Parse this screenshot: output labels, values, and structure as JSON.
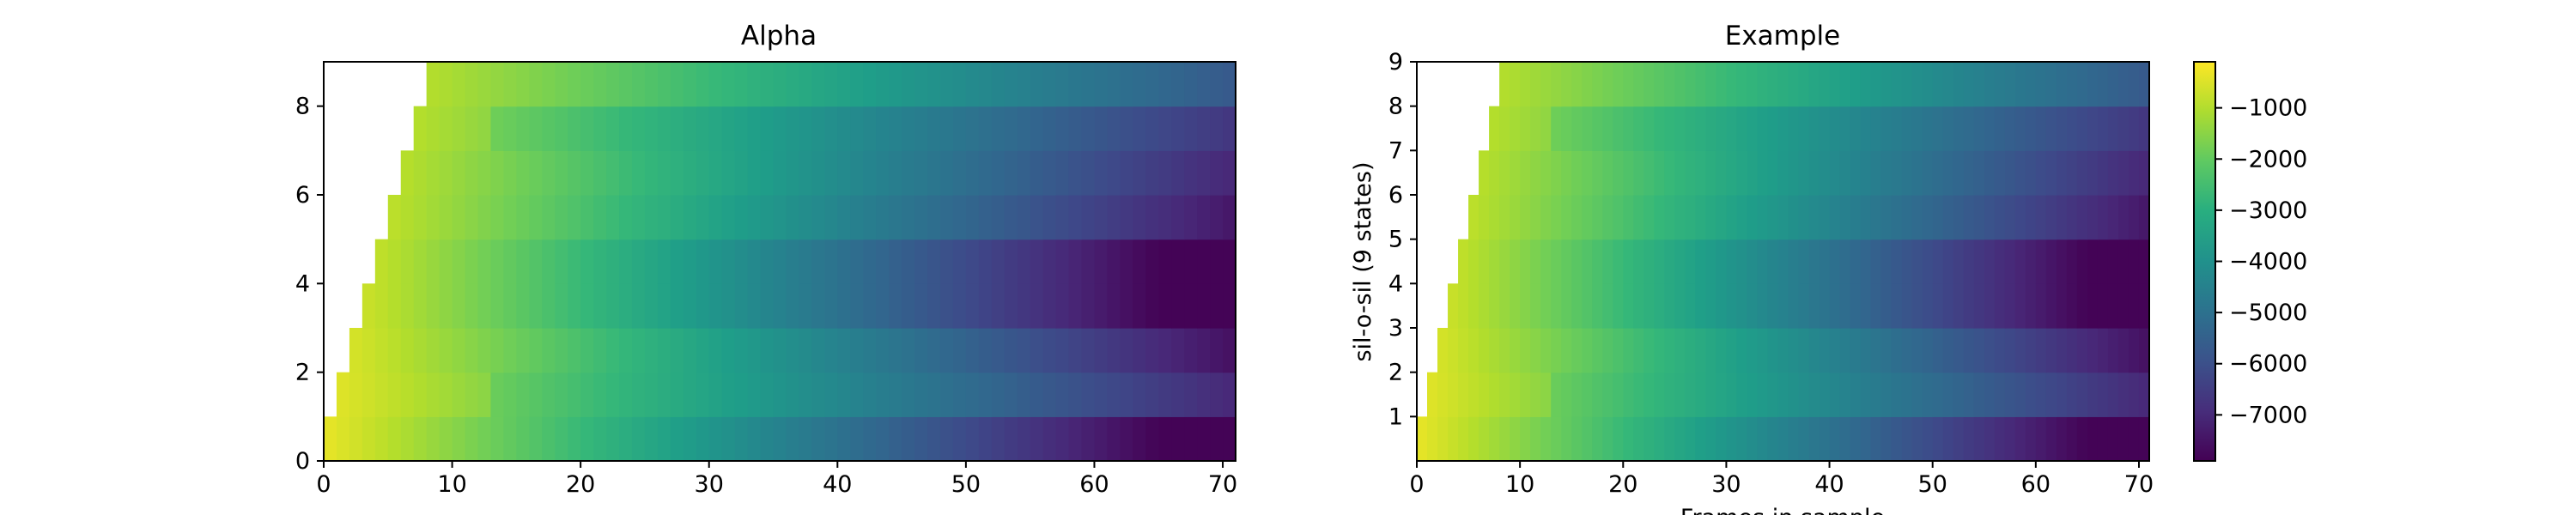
{
  "chart_data": [
    {
      "type": "heatmap",
      "title": "Alpha",
      "xlabel": "",
      "ylabel": "",
      "xlim": [
        0,
        71
      ],
      "ylim": [
        0,
        9
      ],
      "rows": 9,
      "frames": 71,
      "x_ticks": [
        0,
        10,
        20,
        30,
        40,
        50,
        60,
        70
      ],
      "y_ticks": [
        0,
        2,
        4,
        6,
        8
      ]
    },
    {
      "type": "heatmap",
      "title": "Example",
      "xlabel": "Frames in sample",
      "ylabel": "sil-o-sil (9 states)",
      "xlim": [
        0,
        71
      ],
      "ylim": [
        0,
        9
      ],
      "rows": 9,
      "frames": 71,
      "x_ticks": [
        0,
        10,
        20,
        30,
        40,
        50,
        60,
        70
      ],
      "y_ticks": [
        1,
        2,
        3,
        4,
        5,
        6,
        7,
        8,
        9
      ]
    }
  ],
  "colorbar": {
    "colormap": "viridis",
    "vmin": -7900,
    "vmax": -100,
    "ticks": [
      -1000,
      -2000,
      -3000,
      -4000,
      -5000,
      -6000,
      -7000
    ]
  }
}
